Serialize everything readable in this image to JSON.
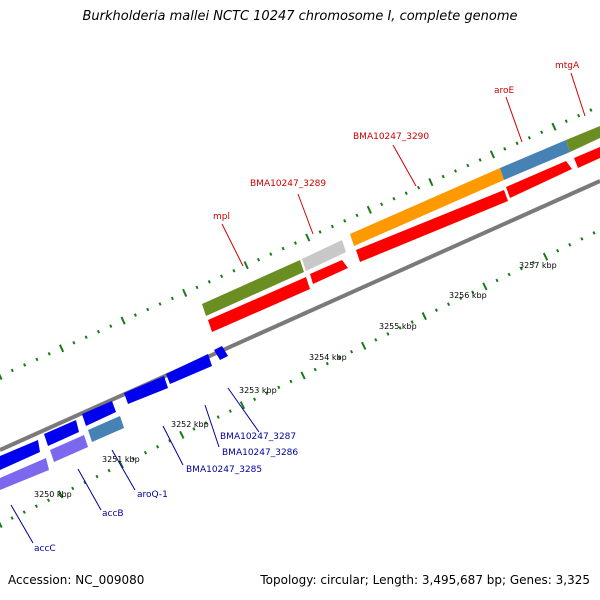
{
  "header": {
    "title": "Burkholderia mallei NCTC 10247 chromosome I, complete genome"
  },
  "footer": {
    "accession": "Accession: NC_009080",
    "summary": "Topology: circular; Length: 3,495,687 bp; Genes: 3,325"
  },
  "colors": {
    "forward_cds": "#ff0000",
    "reverse_cds": "#0000ee",
    "backbone": "#888888",
    "tick": "#1a7a1a",
    "label_top": "#cc0000",
    "label_bottom": "#000099",
    "cog_green": "#6b8e23",
    "cog_orange": "#ff9900",
    "cog_steelblue": "#4682b4",
    "cog_gray": "#c8c8c8",
    "cog_purple": "#7b68ee"
  },
  "scale_labels": [
    "3250 kbp",
    "3251 kbp",
    "3252 kbp",
    "3253 kbp",
    "3254 kbp",
    "3255 kbp",
    "3256 kbp",
    "3257 kbp"
  ],
  "gene_labels_forward": [
    "mpl",
    "BMA10247_3289",
    "BMA10247_3290",
    "aroE",
    "mtgA"
  ],
  "gene_labels_reverse": [
    "accC",
    "accB",
    "aroQ-1",
    "BMA10247_3285",
    "BMA10247_3286",
    "BMA10247_3287"
  ]
}
